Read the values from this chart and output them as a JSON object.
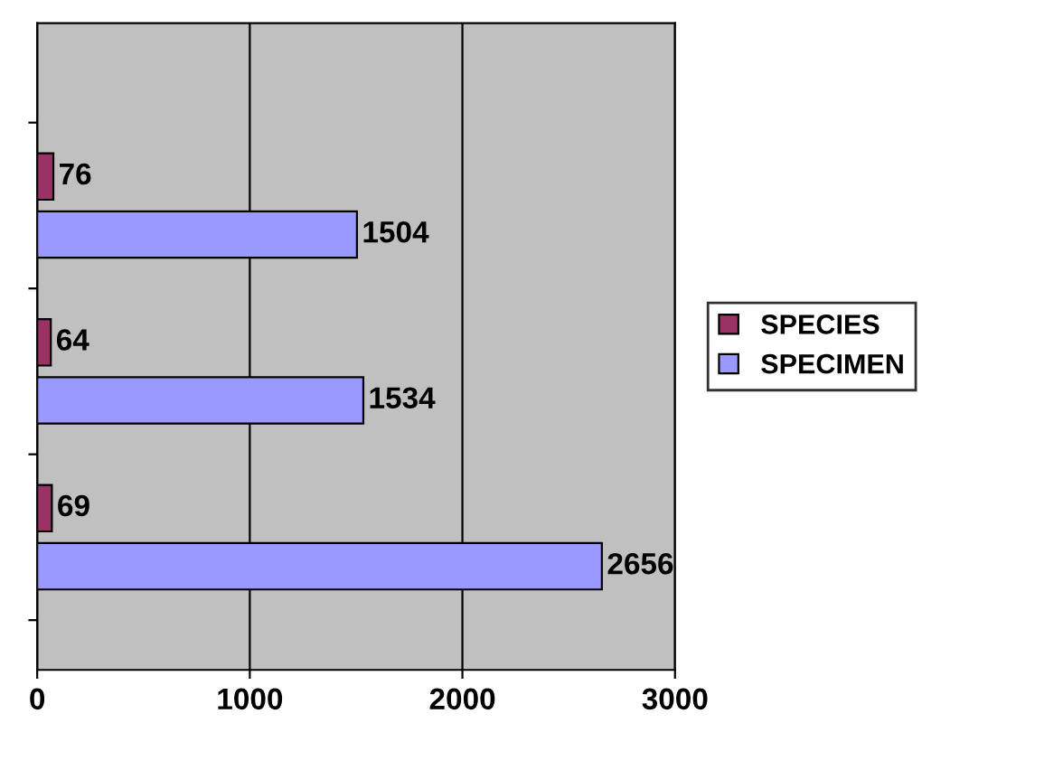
{
  "chart_data": {
    "type": "bar",
    "orientation": "horizontal",
    "categories": [
      null,
      null,
      null
    ],
    "series": [
      {
        "name": "SPECIES",
        "color": "#993366",
        "values": [
          76,
          64,
          69
        ]
      },
      {
        "name": "SPECIMEN",
        "color": "#9999ff",
        "values": [
          1504,
          1534,
          2656
        ]
      }
    ],
    "xlim": [
      0,
      3000
    ],
    "xticks": [
      0,
      1000,
      2000,
      3000
    ],
    "grid": "x",
    "data_labels": true,
    "legend": "right",
    "tick_labels": "x"
  }
}
